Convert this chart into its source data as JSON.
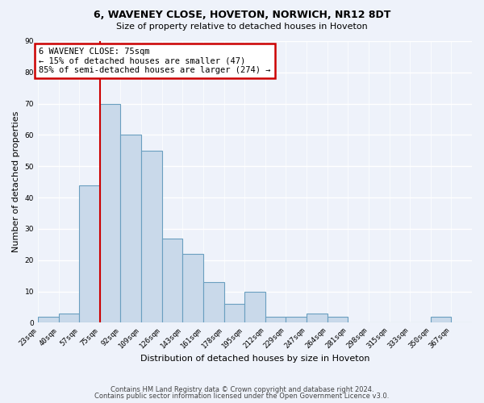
{
  "title1": "6, WAVENEY CLOSE, HOVETON, NORWICH, NR12 8DT",
  "title2": "Size of property relative to detached houses in Hoveton",
  "xlabel": "Distribution of detached houses by size in Hoveton",
  "ylabel": "Number of detached properties",
  "bin_labels": [
    "23sqm",
    "40sqm",
    "57sqm",
    "75sqm",
    "92sqm",
    "109sqm",
    "126sqm",
    "143sqm",
    "161sqm",
    "178sqm",
    "195sqm",
    "212sqm",
    "229sqm",
    "247sqm",
    "264sqm",
    "281sqm",
    "298sqm",
    "315sqm",
    "333sqm",
    "350sqm",
    "367sqm"
  ],
  "bar_heights": [
    2,
    3,
    44,
    70,
    60,
    55,
    27,
    22,
    13,
    6,
    10,
    2,
    2,
    3,
    2,
    0,
    0,
    0,
    0,
    2,
    0
  ],
  "bar_color": "#c9d9ea",
  "bar_edge_color": "#6a9fc0",
  "red_line_index": 3,
  "annotation_line1": "6 WAVENEY CLOSE: 75sqm",
  "annotation_line2": "← 15% of detached houses are smaller (47)",
  "annotation_line3": "85% of semi-detached houses are larger (274) →",
  "annotation_box_color": "white",
  "annotation_box_edge": "#cc0000",
  "ylim": [
    0,
    90
  ],
  "yticks": [
    0,
    10,
    20,
    30,
    40,
    50,
    60,
    70,
    80,
    90
  ],
  "footer1": "Contains HM Land Registry data © Crown copyright and database right 2024.",
  "footer2": "Contains public sector information licensed under the Open Government Licence v3.0.",
  "bg_color": "#eef2fa",
  "grid_color": "#ffffff",
  "title1_fontsize": 9,
  "title2_fontsize": 8
}
